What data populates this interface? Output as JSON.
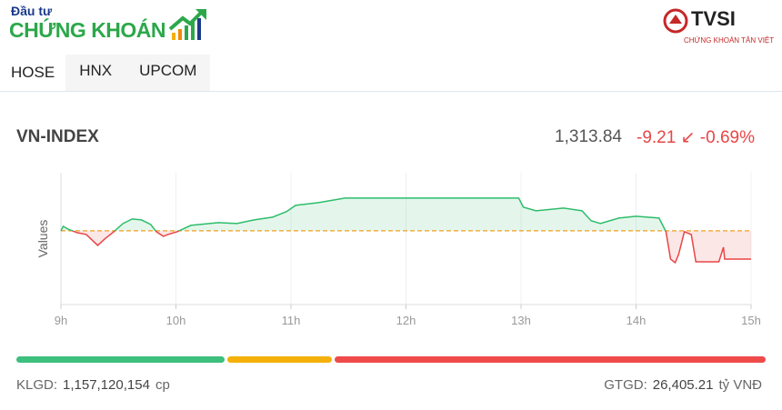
{
  "header": {
    "logo_small": "Đầu tư",
    "logo_big": "CHỨNG KHOÁN",
    "brand": "TVSI",
    "brand_sub": "CHỨNG KHOÁN TÂN VIỆT"
  },
  "tabs": [
    "HOSE",
    "HNX",
    "UPCOM"
  ],
  "index": {
    "name": "VN-INDEX",
    "value": "1,313.84",
    "change": "-9.21",
    "change_pct": "-0.69%"
  },
  "chart_data": {
    "type": "line",
    "y_label": "Values",
    "x": [
      9.0,
      9.02,
      9.06,
      9.14,
      9.22,
      9.32,
      9.38,
      9.46,
      9.54,
      9.62,
      9.7,
      9.78,
      9.83,
      9.89,
      9.93,
      10.01,
      10.13,
      10.37,
      10.53,
      10.68,
      10.84,
      10.96,
      11.04,
      11.24,
      11.47,
      12.98,
      13.02,
      13.13,
      13.37,
      13.53,
      13.61,
      13.69,
      13.85,
      14.0,
      14.2,
      14.26,
      14.3,
      14.34,
      14.37,
      14.42,
      14.48,
      14.52,
      14.72,
      14.76,
      14.77,
      15.0
    ],
    "values": [
      1323.05,
      1324.54,
      1323.64,
      1322.46,
      1321.86,
      1318.3,
      1320.38,
      1322.75,
      1325.43,
      1326.91,
      1326.61,
      1325.13,
      1322.75,
      1321.27,
      1321.86,
      1322.75,
      1324.83,
      1325.72,
      1325.43,
      1326.61,
      1327.51,
      1329.29,
      1331.37,
      1332.26,
      1333.74,
      1333.74,
      1330.77,
      1329.58,
      1330.48,
      1329.58,
      1326.32,
      1325.43,
      1327.21,
      1327.8,
      1327.21,
      1322.75,
      1313.84,
      1312.66,
      1315.33,
      1322.75,
      1321.86,
      1312.95,
      1312.95,
      1317.7,
      1313.84,
      1313.84
    ],
    "reference": 1323.05,
    "xlim": [
      9,
      15
    ],
    "ylim": [
      1299,
      1342
    ],
    "xticks": [
      {
        "value": 9,
        "label": "9h"
      },
      {
        "value": 10,
        "label": "10h"
      },
      {
        "value": 11,
        "label": "11h"
      },
      {
        "value": 12,
        "label": "12h"
      },
      {
        "value": 13,
        "label": "13h"
      },
      {
        "value": 14,
        "label": "14h"
      },
      {
        "value": 15,
        "label": "15h"
      }
    ],
    "grid": true,
    "up_color": "#2ebd6b",
    "down_color": "#e84545",
    "reference_color": "#f0a020"
  },
  "breadth": [
    {
      "value": 28,
      "color": "#3dbf7d"
    },
    {
      "value": 14,
      "color": "#f5b00a"
    },
    {
      "value": 58,
      "color": "#ef4b4b"
    }
  ],
  "stats": {
    "volume_label": "KLGD:",
    "volume": "1,157,120,154",
    "volume_unit": "cp",
    "value_label": "GTGD:",
    "value": "26,405.21",
    "value_unit": "tỷ VNĐ"
  }
}
